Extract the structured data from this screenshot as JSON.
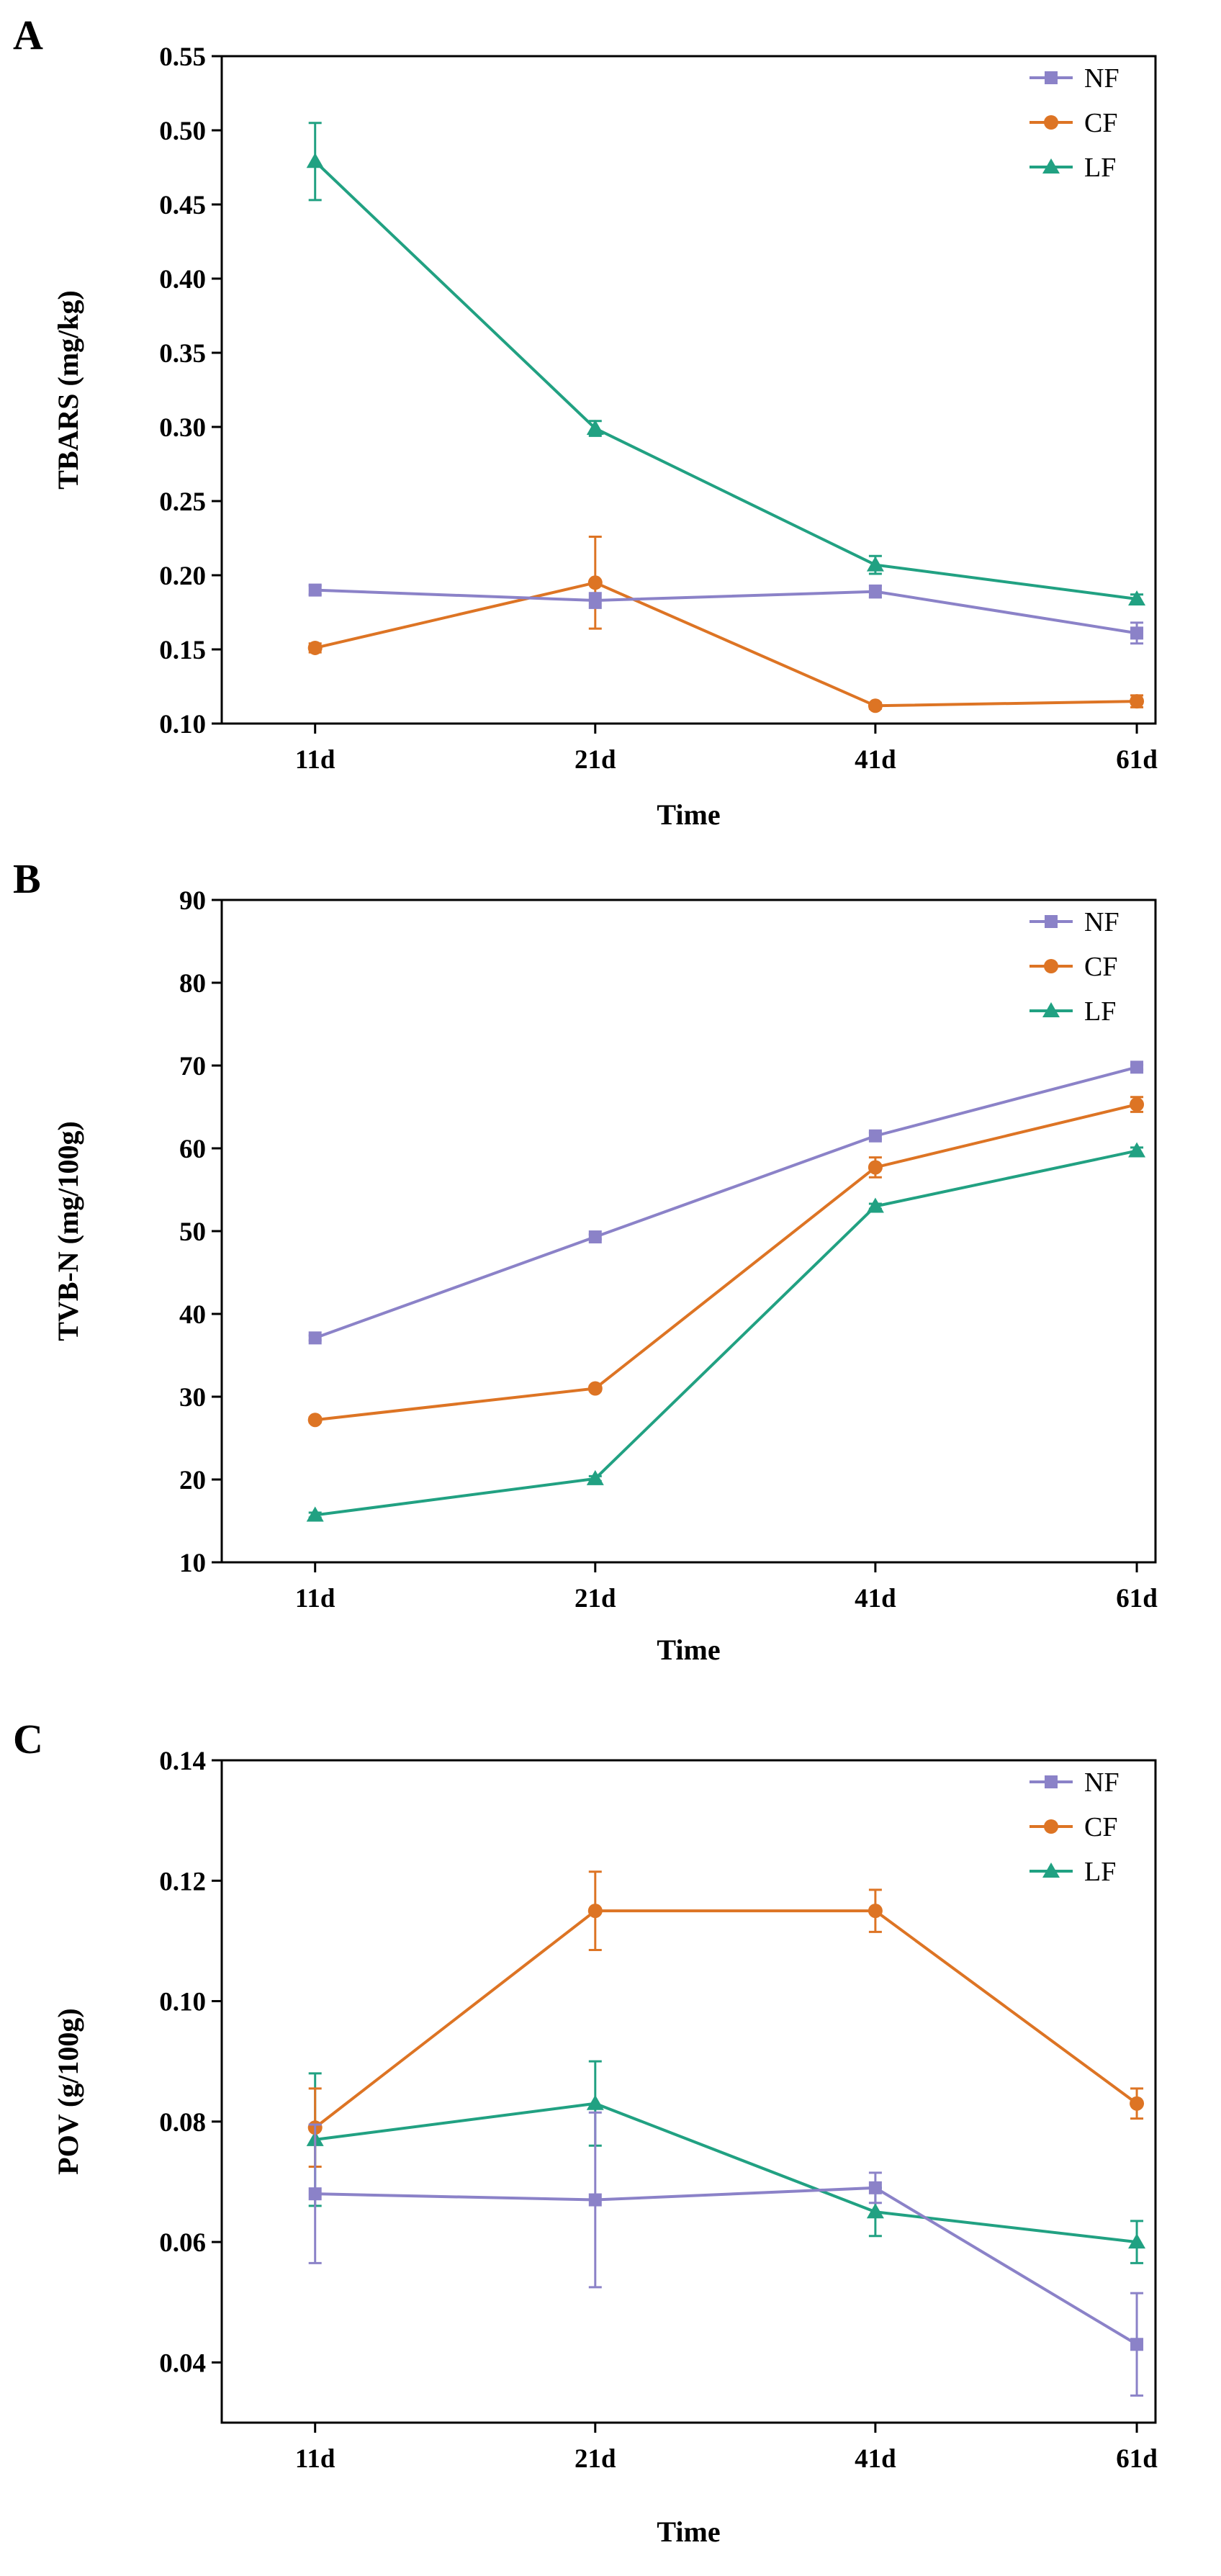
{
  "figure": {
    "panels": [
      "A",
      "B",
      "C"
    ]
  },
  "colors": {
    "NF": "#8b82c8",
    "CF": "#dd7424",
    "LF": "#21a182"
  },
  "chart_data": [
    {
      "panel": "A",
      "type": "line",
      "title": "",
      "xlabel": "Time",
      "ylabel": "TBARS (mg/kg)",
      "categories": [
        "11d",
        "21d",
        "41d",
        "61d"
      ],
      "ylim": [
        0.1,
        0.55
      ],
      "yticks": [
        "0.10",
        "0.15",
        "0.20",
        "0.25",
        "0.30",
        "0.35",
        "0.40",
        "0.45",
        "0.50",
        "0.55"
      ],
      "legend_position": "top-right",
      "series": [
        {
          "name": "NF",
          "marker": "square",
          "values": [
            0.19,
            0.183,
            0.189,
            0.161
          ],
          "errors": [
            0.003,
            0.005,
            0.004,
            0.007
          ]
        },
        {
          "name": "CF",
          "marker": "circle",
          "values": [
            0.151,
            0.195,
            0.112,
            0.115
          ],
          "errors": [
            0.003,
            0.031,
            0.002,
            0.004
          ]
        },
        {
          "name": "LF",
          "marker": "triangle",
          "values": [
            0.479,
            0.299,
            0.207,
            0.184
          ],
          "errors": [
            0.026,
            0.005,
            0.006,
            0.003
          ]
        }
      ]
    },
    {
      "panel": "B",
      "type": "line",
      "title": "",
      "xlabel": "Time",
      "ylabel": "TVB-N (mg/100g)",
      "categories": [
        "11d",
        "21d",
        "41d",
        "61d"
      ],
      "ylim": [
        10,
        90
      ],
      "yticks": [
        "10",
        "20",
        "30",
        "40",
        "50",
        "60",
        "70",
        "80",
        "90"
      ],
      "legend_position": "top-right",
      "series": [
        {
          "name": "NF",
          "marker": "square",
          "values": [
            37.1,
            49.3,
            61.5,
            69.8
          ],
          "errors": [
            0.3,
            0.3,
            0.4,
            0.3
          ]
        },
        {
          "name": "CF",
          "marker": "circle",
          "values": [
            27.2,
            31.0,
            57.7,
            65.3
          ],
          "errors": [
            0.3,
            0.3,
            1.2,
            0.9
          ]
        },
        {
          "name": "LF",
          "marker": "triangle",
          "values": [
            15.7,
            20.1,
            53.0,
            59.7
          ],
          "errors": [
            0.3,
            0.3,
            0.3,
            0.4
          ]
        }
      ]
    },
    {
      "panel": "C",
      "type": "line",
      "title": "",
      "xlabel": "Time",
      "ylabel": "POV (g/100g)",
      "categories": [
        "11d",
        "21d",
        "41d",
        "61d"
      ],
      "ylim": [
        0.03,
        0.14
      ],
      "yticks": [
        "0.04",
        "0.06",
        "0.08",
        "0.10",
        "0.12",
        "0.14"
      ],
      "legend_position": "top-right",
      "series": [
        {
          "name": "NF",
          "marker": "square",
          "values": [
            0.068,
            0.067,
            0.069,
            0.043
          ],
          "errors": [
            0.0115,
            0.0145,
            0.0025,
            0.0085
          ]
        },
        {
          "name": "CF",
          "marker": "circle",
          "values": [
            0.079,
            0.115,
            0.115,
            0.083
          ],
          "errors": [
            0.0065,
            0.0065,
            0.0035,
            0.0025
          ]
        },
        {
          "name": "LF",
          "marker": "triangle",
          "values": [
            0.077,
            0.083,
            0.065,
            0.06
          ],
          "errors": [
            0.011,
            0.007,
            0.004,
            0.0035
          ]
        }
      ]
    }
  ]
}
